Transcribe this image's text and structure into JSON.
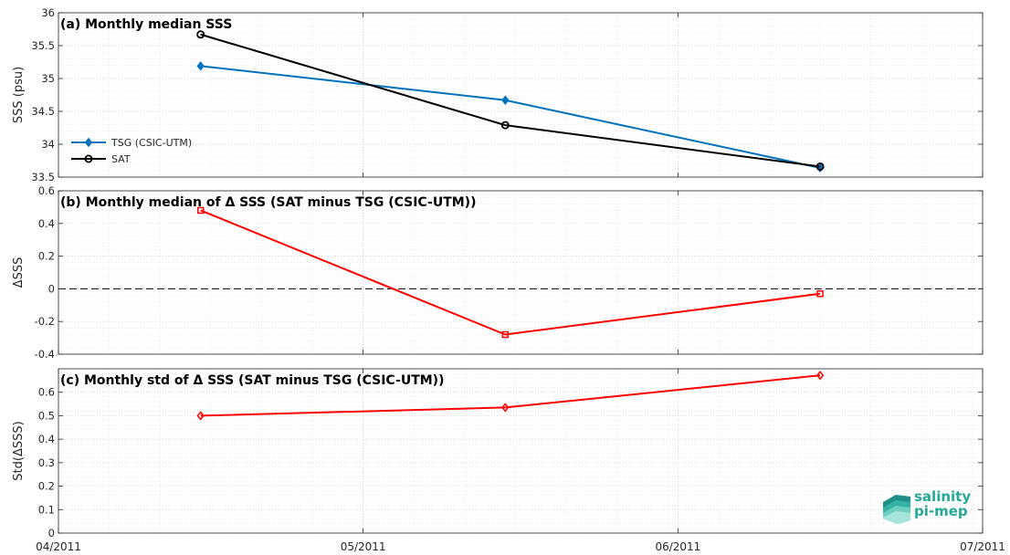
{
  "chart_data": [
    {
      "type": "line",
      "title": "(a) Monthly median SSS",
      "ylabel": "SSS (psu)",
      "ylim": [
        33.5,
        36
      ],
      "yticks": [
        33.5,
        34,
        34.5,
        35,
        35.5,
        36
      ],
      "ytick_labels": [
        "33.5",
        "34",
        "34.5",
        "35",
        "35.5",
        "36"
      ],
      "x": [
        "2011-04-15",
        "2011-05-15",
        "2011-06-15"
      ],
      "series": [
        {
          "name": "TSG (CSIC-UTM)",
          "color": "#0072bd",
          "marker": "diamond",
          "values": [
            35.19,
            34.67,
            33.64
          ]
        },
        {
          "name": "SAT",
          "color": "#000000",
          "marker": "circle",
          "values": [
            35.67,
            34.29,
            33.66
          ]
        }
      ],
      "legend": "bottom-left",
      "grid": true
    },
    {
      "type": "line",
      "title": "(b) Monthly median of Δ SSS (SAT minus TSG (CSIC-UTM))",
      "ylabel": "ΔSSS",
      "ylim": [
        -0.4,
        0.6
      ],
      "yticks": [
        -0.4,
        -0.2,
        0,
        0.2,
        0.4,
        0.6
      ],
      "ytick_labels": [
        "-0.4",
        "-0.2",
        "0",
        "0.2",
        "0.4",
        "0.6"
      ],
      "x": [
        "2011-04-15",
        "2011-05-15",
        "2011-06-15"
      ],
      "series": [
        {
          "color": "#ff0000",
          "marker": "square",
          "values": [
            0.48,
            -0.28,
            -0.03
          ]
        }
      ],
      "reference_line": 0,
      "grid": true
    },
    {
      "type": "line",
      "title": "(c) Monthly std of Δ SSS (SAT minus TSG (CSIC-UTM))",
      "ylabel": "Std(ΔSSS)",
      "ylim": [
        0,
        0.7
      ],
      "yticks": [
        0,
        0.1,
        0.2,
        0.3,
        0.4,
        0.5,
        0.6
      ],
      "ytick_labels": [
        "0",
        "0.1",
        "0.2",
        "0.3",
        "0.4",
        "0.5",
        "0.6"
      ],
      "x": [
        "2011-04-15",
        "2011-05-15",
        "2011-06-15"
      ],
      "series": [
        {
          "color": "#ff0000",
          "marker": "diamond",
          "values": [
            0.5,
            0.535,
            0.672
          ]
        }
      ],
      "xlim": [
        "2011-04-01",
        "2011-07-01"
      ],
      "xtick_values": [
        "2011-04-01",
        "2011-05-01",
        "2011-06-01",
        "2011-07-01"
      ],
      "xtick_labels": [
        "04/2011",
        "05/2011",
        "06/2011",
        "07/2011"
      ],
      "grid": true
    }
  ],
  "logo": {
    "line1": "salinity",
    "line2": "pi-mep"
  }
}
